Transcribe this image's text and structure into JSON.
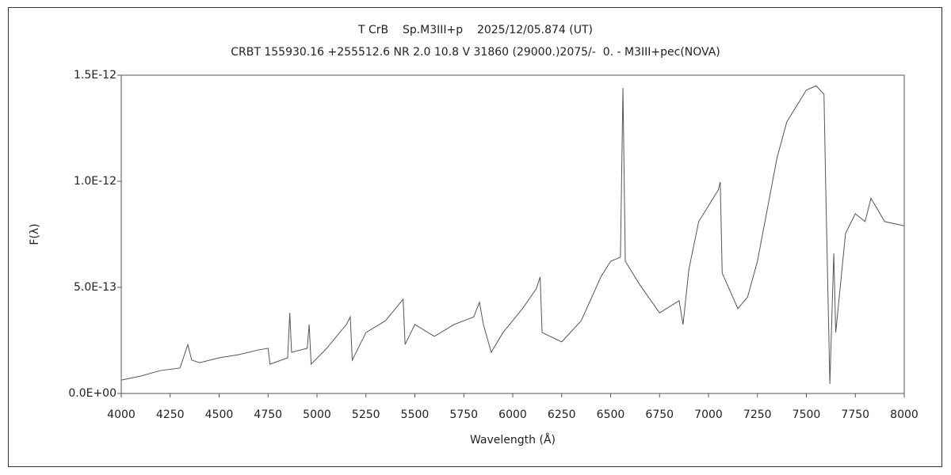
{
  "chart_data": {
    "type": "line",
    "title": "T CrB    Sp.M3III+p    2025/12/05.874 (UT)",
    "subtitle": "CRBT 155930.16 +255512.6 NR 2.0 10.8 V 31860 (29000.)2075/-  0. - M3III+pec(NOVA)",
    "x_label": "Wavelength (Å)",
    "y_label": "F(λ)",
    "color": "#555555",
    "xlim": [
      4000,
      8000
    ],
    "xticks": [
      4000,
      4250,
      4500,
      4750,
      5000,
      5250,
      5500,
      5750,
      6000,
      6250,
      6500,
      6750,
      7000,
      7250,
      7500,
      7750,
      8000
    ],
    "ylim": [
      0,
      1.5e-12
    ],
    "yticks": [
      {
        "value": 0,
        "label": "0.0E+00"
      },
      {
        "value": 5e-13,
        "label": "5.0E-13"
      },
      {
        "value": 1e-12,
        "label": "1.0E-12"
      },
      {
        "value": 1.5e-12,
        "label": "1.5E-12"
      }
    ],
    "grid": false,
    "x": [
      4000,
      4100,
      4200,
      4300,
      4340,
      4360,
      4400,
      4500,
      4600,
      4700,
      4750,
      4760,
      4850,
      4861,
      4870,
      4950,
      4960,
      4970,
      5050,
      5150,
      5170,
      5180,
      5250,
      5350,
      5440,
      5450,
      5500,
      5600,
      5700,
      5800,
      5830,
      5850,
      5890,
      5950,
      6050,
      6120,
      6140,
      6150,
      6250,
      6350,
      6450,
      6500,
      6550,
      6563,
      6575,
      6650,
      6750,
      6850,
      6870,
      6900,
      6950,
      7050,
      7060,
      7070,
      7150,
      7200,
      7250,
      7350,
      7400,
      7500,
      7550,
      7590,
      7600,
      7620,
      7640,
      7650,
      7700,
      7750,
      7800,
      7830,
      7900,
      8000
    ],
    "values": [
      6.3e-14,
      8.2e-14,
      1.08e-13,
      1.2e-13,
      2.3e-13,
      1.57e-13,
      1.45e-13,
      1.68e-13,
      1.83e-13,
      2.05e-13,
      2.13e-13,
      1.38e-13,
      1.68e-13,
      3.8e-13,
      1.94e-13,
      2.13e-13,
      3.25e-13,
      1.38e-13,
      2.13e-13,
      3.25e-13,
      3.6e-13,
      1.57e-13,
      2.87e-13,
      3.43e-13,
      4.44e-13,
      2.31e-13,
      3.25e-13,
      2.69e-13,
      3.25e-13,
      3.6e-13,
      4.3e-13,
      3.25e-13,
      1.94e-13,
      2.87e-13,
      4e-13,
      4.93e-13,
      5.49e-13,
      2.87e-13,
      2.43e-13,
      3.43e-13,
      5.49e-13,
      6.23e-13,
      6.42e-13,
      1.44e-12,
      6.23e-13,
      5.11e-13,
      3.8e-13,
      4.37e-13,
      3.25e-13,
      5.86e-13,
      8.1e-13,
      9.59e-13,
      9.96e-13,
      5.67e-13,
      4e-13,
      4.55e-13,
      6.23e-13,
      1.11e-12,
      1.28e-12,
      1.43e-12,
      1.45e-12,
      1.41e-12,
      9.2e-13,
      4.5e-14,
      6.6e-13,
      2.87e-13,
      7.54e-13,
      8.47e-13,
      8.1e-13,
      9.2e-13,
      8.1e-13,
      7.9e-13
    ]
  }
}
